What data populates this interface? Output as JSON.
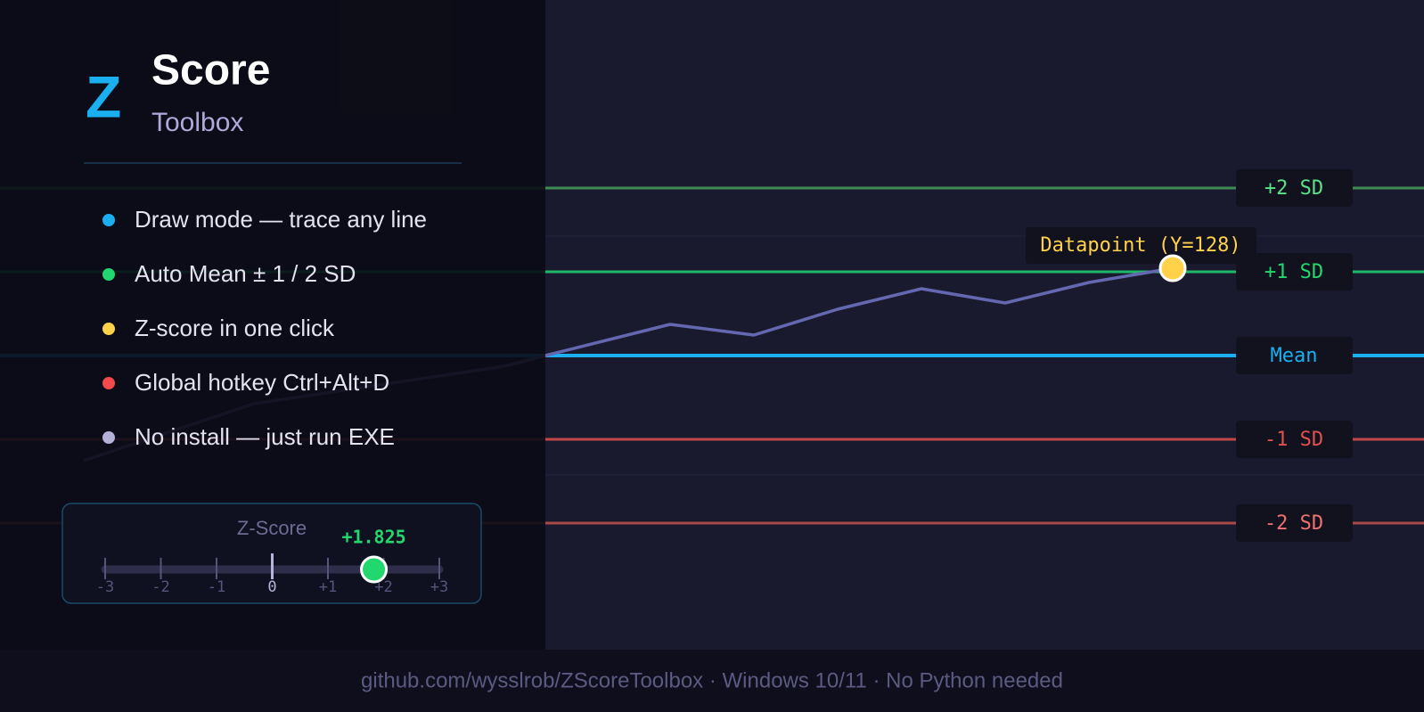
{
  "header": {
    "logo": "Z",
    "title": "Score",
    "subtitle": "Toolbox"
  },
  "features": [
    {
      "text": "Draw mode — trace any line",
      "color": "#1ab0f0"
    },
    {
      "text": "Auto Mean ± 1 / 2 SD",
      "color": "#22d86e"
    },
    {
      "text": "Z-score in one click",
      "color": "#ffd24a"
    },
    {
      "text": "Global hotkey Ctrl+Alt+D",
      "color": "#f04a4a"
    },
    {
      "text": "No install — just run EXE",
      "color": "#b4b0d8"
    }
  ],
  "zscore": {
    "label": "Z-Score",
    "value": {
      "value": 1.825,
      "label": "+1.825"
    },
    "color": "#22d86e",
    "ticks": [
      -3,
      -2,
      -1,
      0,
      {
        "value": 1,
        "label": "+1"
      },
      {
        "value": 2,
        "label": "+2"
      },
      {
        "value": 3,
        "label": "+3"
      }
    ]
  },
  "levels": [
    {
      "label": "+2 SD",
      "color": "#3d8a55",
      "text_color": "#5ce08a"
    },
    {
      "label": "+1 SD",
      "color": "#1fb868",
      "text_color": "#22d86e"
    },
    {
      "label": "Mean",
      "color": "#1ab0f0",
      "text_color": "#1ab0f0"
    },
    {
      "label": "-1 SD",
      "color": "#c04848",
      "text_color": "#e05050"
    },
    {
      "label": "-2 SD",
      "color": "#a84a4a",
      "text_color": "#f07070"
    }
  ],
  "datapoint": "Datapoint (Y=128)",
  "footer": "github.com/wysslrob/ZScoreToolbox · Windows 10/11 · No Python needed"
}
